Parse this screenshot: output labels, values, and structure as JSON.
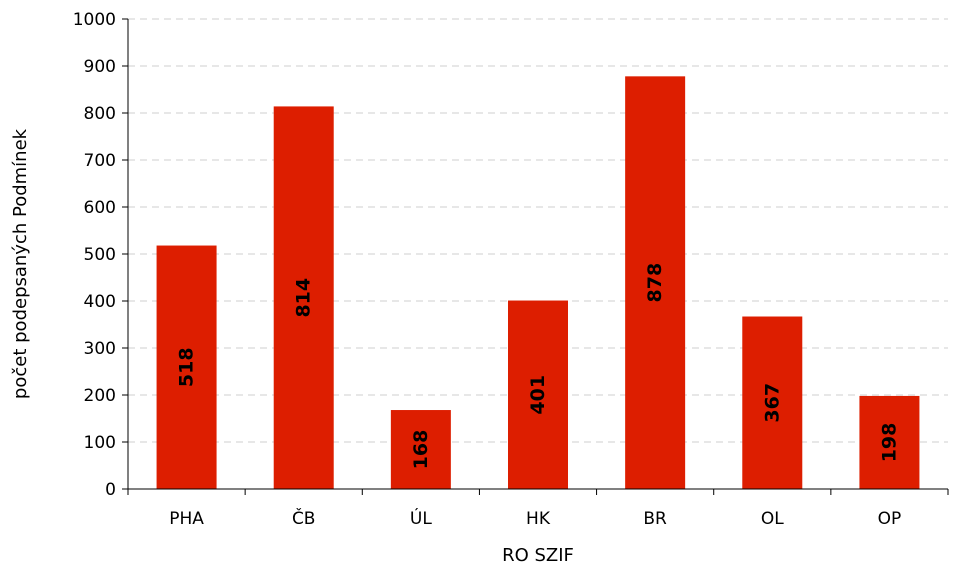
{
  "chart_data": {
    "type": "bar",
    "categories": [
      "PHA",
      "ČB",
      "ÚL",
      "HK",
      "BR",
      "OL",
      "OP"
    ],
    "values": [
      518,
      814,
      168,
      401,
      878,
      367,
      198
    ],
    "data_labels": [
      "518",
      "814",
      "168",
      "401",
      "878",
      "367",
      "198"
    ],
    "title": "",
    "xlabel": "RO SZIF",
    "ylabel": "počet podepsaných Podmínek",
    "ylim": [
      0,
      1000
    ],
    "yticks": [
      0,
      100,
      200,
      300,
      400,
      500,
      600,
      700,
      800,
      900,
      1000
    ],
    "grid": true,
    "legend": "none",
    "bar_color": "#dd1e00"
  }
}
